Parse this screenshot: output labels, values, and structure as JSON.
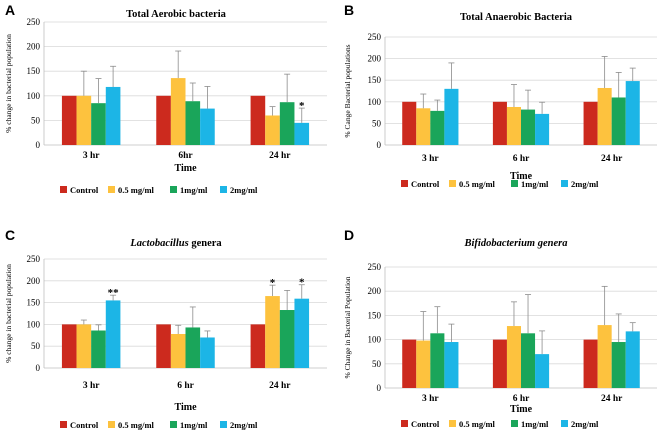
{
  "legend_colors": [
    "#cc2a1e",
    "#fdc23e",
    "#1aa55a",
    "#1cb5e6"
  ],
  "chart_data": [
    {
      "type": "bar",
      "panel": "A",
      "title": "Total Aerobic  bacteria",
      "title_italic_part": "",
      "xlabel": "Time",
      "ylabel": "% change in bacterial population",
      "categories": [
        "3 hr",
        "6hr",
        "24 hr"
      ],
      "ylim": [
        0,
        250
      ],
      "yticks": [
        0,
        50,
        100,
        150,
        200,
        250
      ],
      "series": [
        {
          "name": "Control",
          "values": [
            100,
            100,
            100
          ],
          "errors": [
            0,
            0,
            0
          ]
        },
        {
          "name": "0.5 mg/ml",
          "values": [
            100,
            136,
            60
          ],
          "errors": [
            50,
            55,
            18
          ]
        },
        {
          "name": "1mg/ml",
          "values": [
            85,
            89,
            87
          ],
          "errors": [
            50,
            37,
            57
          ]
        },
        {
          "name": "2mg/ml",
          "values": [
            118,
            74,
            45
          ],
          "errors": [
            42,
            45,
            30
          ]
        }
      ],
      "annotations": [
        {
          "category": 2,
          "series": 3,
          "text": "*"
        }
      ]
    },
    {
      "type": "bar",
      "panel": "B",
      "title": "Total Anaerobic  Bacteria",
      "title_italic_part": "",
      "xlabel": "Time",
      "ylabel": "% Cange Bacterial populations",
      "categories": [
        "3 hr",
        "6 hr",
        "24 hr"
      ],
      "ylim": [
        0,
        250
      ],
      "yticks": [
        0,
        50,
        100,
        150,
        200,
        250
      ],
      "series": [
        {
          "name": "Control",
          "values": [
            100,
            100,
            100
          ],
          "errors": [
            0,
            0,
            0
          ]
        },
        {
          "name": "0.5 mg/ml",
          "values": [
            85,
            88,
            132
          ],
          "errors": [
            33,
            52,
            73
          ]
        },
        {
          "name": "1mg/ml",
          "values": [
            79,
            82,
            110
          ],
          "errors": [
            25,
            45,
            58
          ]
        },
        {
          "name": "2mg/ml",
          "values": [
            130,
            72,
            148
          ],
          "errors": [
            60,
            27,
            30
          ]
        }
      ],
      "annotations": []
    },
    {
      "type": "bar",
      "panel": "C",
      "title": "Lactobacillus",
      "title_italic_part": "Lactobacillus",
      "title_rest": " genera",
      "xlabel": "Time",
      "ylabel": "% change in bacterial population",
      "categories": [
        "3 hr",
        "6 hr",
        "24 hr"
      ],
      "ylim": [
        0,
        250
      ],
      "yticks": [
        0,
        50,
        100,
        150,
        200,
        250
      ],
      "series": [
        {
          "name": "Control",
          "values": [
            100,
            100,
            100
          ],
          "errors": [
            0,
            0,
            0
          ]
        },
        {
          "name": "0.5 mg/ml",
          "values": [
            100,
            78,
            165
          ],
          "errors": [
            10,
            20,
            25
          ]
        },
        {
          "name": "1mg/ml",
          "values": [
            86,
            93,
            133
          ],
          "errors": [
            13,
            47,
            45
          ]
        },
        {
          "name": "2mg/ml",
          "values": [
            155,
            70,
            159
          ],
          "errors": [
            12,
            15,
            32
          ]
        }
      ],
      "annotations": [
        {
          "category": 0,
          "series": 3,
          "text": "**"
        },
        {
          "category": 2,
          "series": 1,
          "text": "*"
        },
        {
          "category": 2,
          "series": 3,
          "text": "*"
        }
      ]
    },
    {
      "type": "bar",
      "panel": "D",
      "title": "Bifidobacterium genera",
      "title_italic_part": "Bifidobacterium genera",
      "title_rest": "",
      "xlabel": "Time",
      "ylabel": "% Change in Bacterial Population",
      "categories": [
        "3 hr",
        "6 hr",
        "24 hr"
      ],
      "ylim": [
        0,
        250
      ],
      "yticks": [
        0,
        50,
        100,
        150,
        200,
        250
      ],
      "series": [
        {
          "name": "Control",
          "values": [
            100,
            100,
            100
          ],
          "errors": [
            0,
            0,
            0
          ]
        },
        {
          "name": "0.5 mg/ml",
          "values": [
            98,
            128,
            130
          ],
          "errors": [
            60,
            50,
            80
          ]
        },
        {
          "name": "1mg/ml",
          "values": [
            113,
            113,
            95
          ],
          "errors": [
            55,
            80,
            58
          ]
        },
        {
          "name": "2mg/ml",
          "values": [
            95,
            70,
            117
          ],
          "errors": [
            37,
            48,
            18
          ]
        }
      ],
      "annotations": []
    }
  ]
}
